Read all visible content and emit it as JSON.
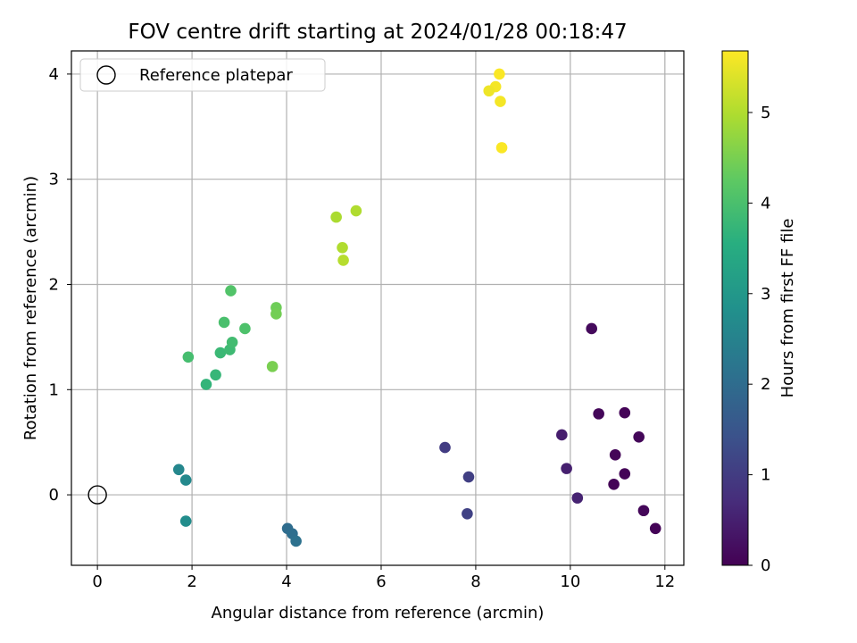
{
  "chart_data": {
    "type": "scatter",
    "title": "FOV centre drift starting at 2024/01/28 00:18:47",
    "xlabel": "Angular distance from reference (arcmin)",
    "ylabel": "Rotation from reference (arcmin)",
    "xlim": [
      -0.55,
      12.4
    ],
    "ylim": [
      -0.67,
      4.22
    ],
    "xticks": [
      0,
      2,
      4,
      6,
      8,
      10,
      12
    ],
    "yticks": [
      0,
      1,
      2,
      3,
      4
    ],
    "grid": true,
    "legend": {
      "position": "top-left",
      "entries": [
        "Reference platepar"
      ]
    },
    "reference_point": {
      "x": 0,
      "y": 0
    },
    "colorbar": {
      "label": "Hours from first FF file",
      "range": [
        0,
        5.68
      ],
      "ticks": [
        0,
        1,
        2,
        3,
        4,
        5
      ],
      "colormap": "viridis"
    },
    "points": [
      {
        "x": 10.45,
        "y": 1.58,
        "c": 0.15
      },
      {
        "x": 10.6,
        "y": 0.77,
        "c": 0.1
      },
      {
        "x": 11.15,
        "y": 0.78,
        "c": 0.05
      },
      {
        "x": 11.45,
        "y": 0.55,
        "c": 0.1
      },
      {
        "x": 10.95,
        "y": 0.38,
        "c": 0.08
      },
      {
        "x": 11.15,
        "y": 0.2,
        "c": 0.05
      },
      {
        "x": 10.92,
        "y": 0.1,
        "c": 0.05
      },
      {
        "x": 11.55,
        "y": -0.15,
        "c": 0.1
      },
      {
        "x": 11.8,
        "y": -0.32,
        "c": 0.05
      },
      {
        "x": 9.82,
        "y": 0.57,
        "c": 0.45
      },
      {
        "x": 9.92,
        "y": 0.25,
        "c": 0.5
      },
      {
        "x": 10.15,
        "y": -0.03,
        "c": 0.55
      },
      {
        "x": 7.35,
        "y": 0.45,
        "c": 1.0
      },
      {
        "x": 7.85,
        "y": 0.17,
        "c": 1.05
      },
      {
        "x": 7.82,
        "y": -0.18,
        "c": 1.1
      },
      {
        "x": 4.02,
        "y": -0.32,
        "c": 2.0
      },
      {
        "x": 4.12,
        "y": -0.37,
        "c": 2.05
      },
      {
        "x": 4.2,
        "y": -0.44,
        "c": 2.1
      },
      {
        "x": 1.72,
        "y": 0.24,
        "c": 2.6
      },
      {
        "x": 1.87,
        "y": 0.14,
        "c": 2.65
      },
      {
        "x": 1.87,
        "y": -0.25,
        "c": 2.75
      },
      {
        "x": 2.3,
        "y": 1.05,
        "c": 3.7
      },
      {
        "x": 2.5,
        "y": 1.14,
        "c": 3.75
      },
      {
        "x": 2.6,
        "y": 1.35,
        "c": 3.8
      },
      {
        "x": 2.8,
        "y": 1.38,
        "c": 3.85
      },
      {
        "x": 2.85,
        "y": 1.45,
        "c": 3.9
      },
      {
        "x": 1.92,
        "y": 1.31,
        "c": 3.95
      },
      {
        "x": 2.68,
        "y": 1.64,
        "c": 4.0
      },
      {
        "x": 3.12,
        "y": 1.58,
        "c": 4.05
      },
      {
        "x": 2.82,
        "y": 1.94,
        "c": 4.1
      },
      {
        "x": 3.78,
        "y": 1.78,
        "c": 4.4
      },
      {
        "x": 3.78,
        "y": 1.72,
        "c": 4.45
      },
      {
        "x": 3.7,
        "y": 1.22,
        "c": 4.5
      },
      {
        "x": 5.05,
        "y": 2.64,
        "c": 4.95
      },
      {
        "x": 5.47,
        "y": 2.7,
        "c": 5.0
      },
      {
        "x": 5.18,
        "y": 2.35,
        "c": 5.0
      },
      {
        "x": 5.2,
        "y": 2.23,
        "c": 5.05
      },
      {
        "x": 8.5,
        "y": 4.0,
        "c": 5.65
      },
      {
        "x": 8.42,
        "y": 3.88,
        "c": 5.6
      },
      {
        "x": 8.28,
        "y": 3.84,
        "c": 5.55
      },
      {
        "x": 8.52,
        "y": 3.74,
        "c": 5.6
      },
      {
        "x": 8.55,
        "y": 3.3,
        "c": 5.65
      }
    ]
  }
}
